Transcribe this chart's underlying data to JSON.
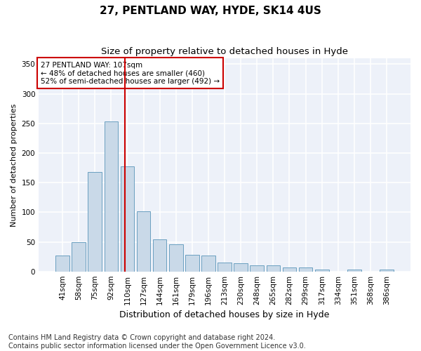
{
  "title1": "27, PENTLAND WAY, HYDE, SK14 4US",
  "title2": "Size of property relative to detached houses in Hyde",
  "xlabel": "Distribution of detached houses by size in Hyde",
  "ylabel": "Number of detached properties",
  "categories": [
    "41sqm",
    "58sqm",
    "75sqm",
    "92sqm",
    "110sqm",
    "127sqm",
    "144sqm",
    "161sqm",
    "179sqm",
    "196sqm",
    "213sqm",
    "230sqm",
    "248sqm",
    "265sqm",
    "282sqm",
    "299sqm",
    "317sqm",
    "334sqm",
    "351sqm",
    "368sqm",
    "386sqm"
  ],
  "values": [
    27,
    50,
    168,
    253,
    177,
    102,
    54,
    46,
    28,
    27,
    15,
    14,
    10,
    10,
    7,
    7,
    3,
    0,
    3,
    0,
    3
  ],
  "bar_color": "#c9d9e8",
  "bar_edge_color": "#6a9fc0",
  "property_label": "27 PENTLAND WAY: 107sqm",
  "annotation_line1": "← 48% of detached houses are smaller (460)",
  "annotation_line2": "52% of semi-detached houses are larger (492) →",
  "vline_color": "#cc0000",
  "annotation_box_edge": "#cc0000",
  "footer1": "Contains HM Land Registry data © Crown copyright and database right 2024.",
  "footer2": "Contains public sector information licensed under the Open Government Licence v3.0.",
  "ylim": [
    0,
    360
  ],
  "yticks": [
    0,
    50,
    100,
    150,
    200,
    250,
    300,
    350
  ],
  "bg_color": "#edf1f9",
  "grid_color": "#ffffff",
  "title1_fontsize": 11,
  "title2_fontsize": 9.5,
  "xlabel_fontsize": 9,
  "ylabel_fontsize": 8,
  "tick_fontsize": 7.5,
  "footer_fontsize": 7,
  "vline_x": 3.83
}
